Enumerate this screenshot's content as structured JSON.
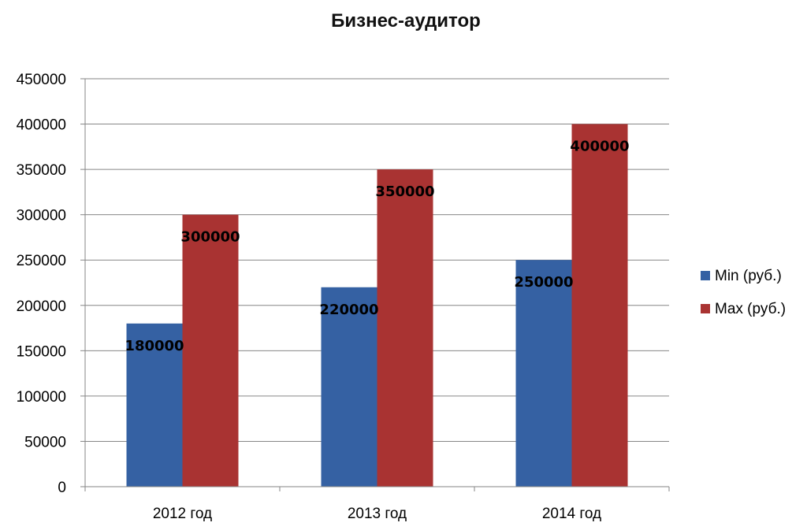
{
  "chart_data": {
    "type": "bar",
    "title": "Бизнес-аудитор",
    "categories": [
      "2012 год",
      "2013 год",
      "2014 год"
    ],
    "series": [
      {
        "name": "Min (руб.)",
        "values": [
          180000,
          220000,
          250000
        ],
        "color": "#3561A3"
      },
      {
        "name": "Max (руб.)",
        "values": [
          300000,
          350000,
          400000
        ],
        "color": "#A93332"
      }
    ],
    "ylim": [
      0,
      450000
    ],
    "yticks": [
      0,
      50000,
      100000,
      150000,
      200000,
      250000,
      300000,
      350000,
      400000,
      450000
    ],
    "grid": true,
    "legend_position": "right",
    "data_labels": true
  }
}
